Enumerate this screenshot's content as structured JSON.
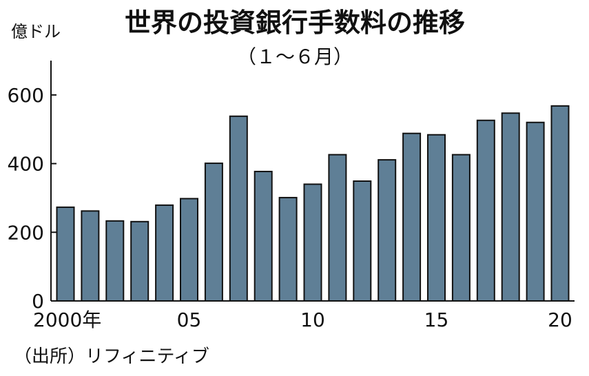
{
  "chart_data": {
    "type": "bar",
    "title": "世界の投資銀行手数料の推移",
    "subtitle": "（１～６月）",
    "ylabel": "億ドル",
    "source": "（出所）リフィニティブ",
    "ylim": [
      0,
      700
    ],
    "yticks": [
      "0",
      "200",
      "400",
      "600"
    ],
    "ytick_values": [
      0,
      200,
      400,
      600
    ],
    "x": [
      2000,
      2001,
      2002,
      2003,
      2004,
      2005,
      2006,
      2007,
      2008,
      2009,
      2010,
      2011,
      2012,
      2013,
      2014,
      2015,
      2016,
      2017,
      2018,
      2019,
      2020
    ],
    "values": [
      273,
      262,
      233,
      231,
      279,
      298,
      401,
      538,
      377,
      301,
      340,
      426,
      349,
      411,
      488,
      484,
      426,
      526,
      547,
      520,
      568
    ],
    "xtick_labels": [
      {
        "index": 0,
        "label": "2000年"
      },
      {
        "index": 5,
        "label": "05"
      },
      {
        "index": 10,
        "label": "10"
      },
      {
        "index": 15,
        "label": "15"
      },
      {
        "index": 20,
        "label": "20"
      }
    ],
    "bar_color": "#5f7f96",
    "grid": false
  }
}
